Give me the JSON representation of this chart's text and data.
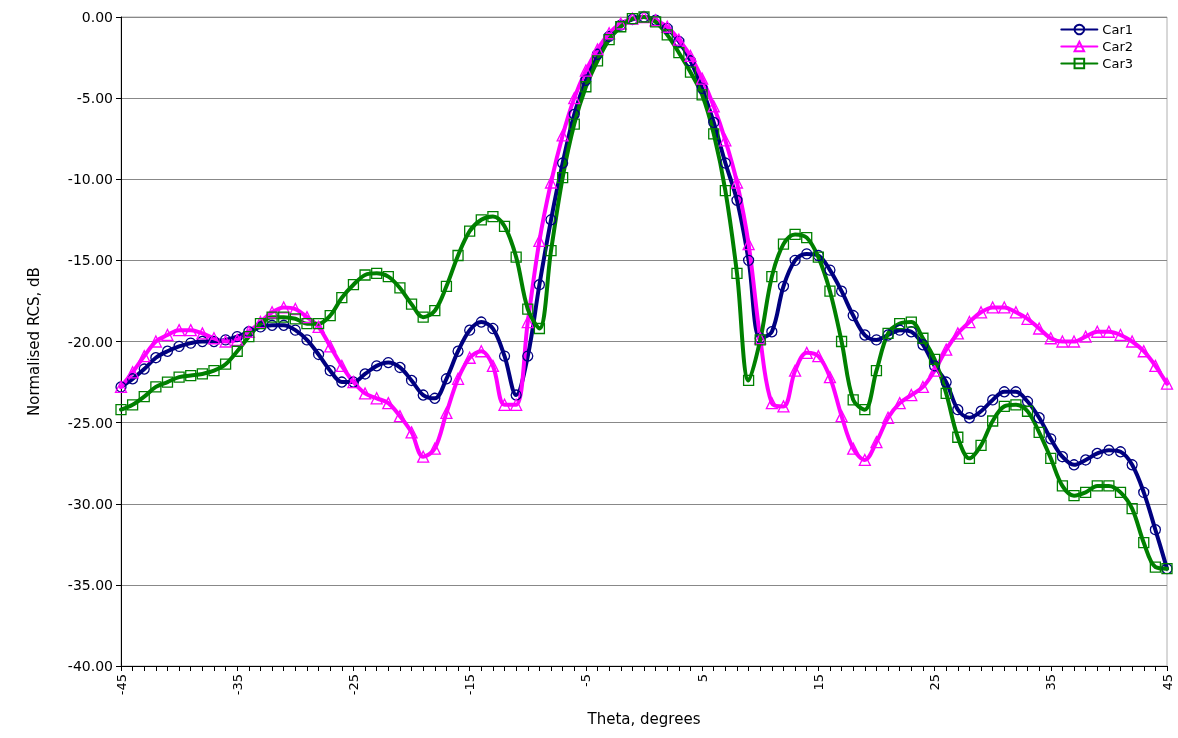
{
  "chart_data": {
    "type": "line",
    "xlabel": "Theta, degrees",
    "ylabel": "Normalised RCS, dB",
    "x": [
      -45,
      -44,
      -43,
      -42,
      -41,
      -40,
      -39,
      -38,
      -37,
      -36,
      -35,
      -34,
      -33,
      -32,
      -31,
      -30,
      -29,
      -28,
      -27,
      -26,
      -25,
      -24,
      -23,
      -22,
      -21,
      -20,
      -19,
      -18,
      -17,
      -16,
      -15,
      -14,
      -13,
      -12,
      -11,
      -10,
      -9,
      -8,
      -7,
      -6,
      -5,
      -4,
      -3,
      -2,
      -1,
      0,
      1,
      2,
      3,
      4,
      5,
      6,
      7,
      8,
      9,
      10,
      11,
      12,
      13,
      14,
      15,
      16,
      17,
      18,
      19,
      20,
      21,
      22,
      23,
      24,
      25,
      26,
      27,
      28,
      29,
      30,
      31,
      32,
      33,
      34,
      35,
      36,
      37,
      38,
      39,
      40,
      41,
      42,
      43,
      44,
      45
    ],
    "series": [
      {
        "name": "Car1",
        "color": "#000080",
        "marker": "circle",
        "values": [
          -22.8,
          -22.3,
          -21.7,
          -21.0,
          -20.6,
          -20.3,
          -20.1,
          -20.0,
          -20.0,
          -19.9,
          -19.7,
          -19.4,
          -19.1,
          -19.0,
          -19.0,
          -19.3,
          -19.9,
          -20.8,
          -21.8,
          -22.5,
          -22.5,
          -22.0,
          -21.5,
          -21.3,
          -21.6,
          -22.4,
          -23.3,
          -23.5,
          -22.3,
          -20.6,
          -19.3,
          -18.8,
          -19.2,
          -20.9,
          -23.3,
          -20.9,
          -16.5,
          -12.5,
          -9.0,
          -6.0,
          -3.9,
          -2.3,
          -1.2,
          -0.5,
          -0.15,
          0.0,
          -0.2,
          -0.7,
          -1.5,
          -2.7,
          -4.4,
          -6.5,
          -9.0,
          -11.3,
          -15.0,
          -19.8,
          -19.4,
          -16.6,
          -15.0,
          -14.6,
          -14.7,
          -15.6,
          -16.9,
          -18.4,
          -19.6,
          -19.9,
          -19.6,
          -19.3,
          -19.4,
          -20.2,
          -21.5,
          -22.5,
          -24.2,
          -24.7,
          -24.3,
          -23.6,
          -23.1,
          -23.1,
          -23.7,
          -24.7,
          -26.0,
          -27.1,
          -27.6,
          -27.3,
          -26.9,
          -26.7,
          -26.8,
          -27.6,
          -29.3,
          -31.6,
          -34.0
        ]
      },
      {
        "name": "Car2",
        "color": "#ff00ff",
        "marker": "triangle",
        "values": [
          -22.8,
          -21.9,
          -20.9,
          -20.0,
          -19.6,
          -19.3,
          -19.3,
          -19.5,
          -19.8,
          -20.0,
          -19.9,
          -19.4,
          -18.8,
          -18.2,
          -17.9,
          -18.0,
          -18.5,
          -19.1,
          -20.3,
          -21.5,
          -22.5,
          -23.2,
          -23.5,
          -23.8,
          -24.6,
          -25.6,
          -27.1,
          -26.6,
          -24.4,
          -22.3,
          -21.0,
          -20.6,
          -21.5,
          -23.9,
          -23.9,
          -18.8,
          -13.8,
          -10.2,
          -7.3,
          -5.0,
          -3.3,
          -2.0,
          -1.0,
          -0.4,
          -0.1,
          0.0,
          -0.2,
          -0.6,
          -1.4,
          -2.4,
          -3.8,
          -5.5,
          -7.6,
          -10.2,
          -14.0,
          -19.8,
          -23.8,
          -24.0,
          -21.8,
          -20.7,
          -20.9,
          -22.2,
          -24.6,
          -26.6,
          -27.3,
          -26.2,
          -24.7,
          -23.8,
          -23.3,
          -22.8,
          -21.8,
          -20.5,
          -19.5,
          -18.8,
          -18.2,
          -17.9,
          -17.9,
          -18.2,
          -18.6,
          -19.2,
          -19.8,
          -20.0,
          -20.0,
          -19.7,
          -19.4,
          -19.4,
          -19.6,
          -20.0,
          -20.6,
          -21.5,
          -22.6
        ]
      },
      {
        "name": "Car3",
        "color": "#008000",
        "marker": "square",
        "values": [
          -24.2,
          -23.9,
          -23.4,
          -22.8,
          -22.5,
          -22.2,
          -22.1,
          -22.0,
          -21.8,
          -21.4,
          -20.6,
          -19.7,
          -18.9,
          -18.5,
          -18.5,
          -18.6,
          -18.9,
          -18.9,
          -18.4,
          -17.3,
          -16.5,
          -15.9,
          -15.8,
          -16.0,
          -16.7,
          -17.7,
          -18.5,
          -18.1,
          -16.6,
          -14.7,
          -13.2,
          -12.5,
          -12.3,
          -12.9,
          -14.8,
          -18.0,
          -19.2,
          -14.4,
          -9.9,
          -6.6,
          -4.3,
          -2.7,
          -1.4,
          -0.6,
          -0.1,
          0.0,
          -0.3,
          -1.1,
          -2.2,
          -3.4,
          -4.8,
          -7.2,
          -10.7,
          -15.8,
          -22.4,
          -19.9,
          -16.0,
          -14.0,
          -13.4,
          -13.6,
          -14.8,
          -16.9,
          -20.0,
          -23.6,
          -24.2,
          -21.8,
          -19.5,
          -18.9,
          -18.8,
          -19.8,
          -21.1,
          -23.2,
          -25.9,
          -27.2,
          -26.4,
          -24.9,
          -24.0,
          -23.9,
          -24.3,
          -25.6,
          -27.2,
          -28.9,
          -29.5,
          -29.3,
          -28.9,
          -28.9,
          -29.3,
          -30.3,
          -32.4,
          -33.9,
          -34.0
        ]
      }
    ],
    "xlim": [
      -45,
      45
    ],
    "xticks": [
      {
        "value": -45,
        "label": "-45"
      },
      {
        "value": -44,
        "label": null
      },
      {
        "value": -43,
        "label": null
      },
      {
        "value": -42,
        "label": null
      },
      {
        "value": -41,
        "label": null
      },
      {
        "value": -40,
        "label": null
      },
      {
        "value": -39,
        "label": null
      },
      {
        "value": -38,
        "label": null
      },
      {
        "value": -37,
        "label": null
      },
      {
        "value": -36,
        "label": null
      },
      {
        "value": -35,
        "label": "-35"
      },
      {
        "value": -34,
        "label": null
      },
      {
        "value": -33,
        "label": null
      },
      {
        "value": -32,
        "label": null
      },
      {
        "value": -31,
        "label": null
      },
      {
        "value": -30,
        "label": null
      },
      {
        "value": -29,
        "label": null
      },
      {
        "value": -28,
        "label": null
      },
      {
        "value": -27,
        "label": null
      },
      {
        "value": -26,
        "label": null
      },
      {
        "value": -25,
        "label": "-25"
      },
      {
        "value": -24,
        "label": null
      },
      {
        "value": -23,
        "label": null
      },
      {
        "value": -22,
        "label": null
      },
      {
        "value": -21,
        "label": null
      },
      {
        "value": -20,
        "label": null
      },
      {
        "value": -19,
        "label": null
      },
      {
        "value": -18,
        "label": null
      },
      {
        "value": -17,
        "label": null
      },
      {
        "value": -16,
        "label": null
      },
      {
        "value": -15,
        "label": "-15"
      },
      {
        "value": -14,
        "label": null
      },
      {
        "value": -13,
        "label": null
      },
      {
        "value": -12,
        "label": null
      },
      {
        "value": -11,
        "label": null
      },
      {
        "value": -10,
        "label": null
      },
      {
        "value": -9,
        "label": null
      },
      {
        "value": -8,
        "label": null
      },
      {
        "value": -7,
        "label": null
      },
      {
        "value": -6,
        "label": null
      },
      {
        "value": -5,
        "label": "-5"
      },
      {
        "value": -4,
        "label": null
      },
      {
        "value": -3,
        "label": null
      },
      {
        "value": -2,
        "label": null
      },
      {
        "value": -1,
        "label": null
      },
      {
        "value": 0,
        "label": null
      },
      {
        "value": 1,
        "label": null
      },
      {
        "value": 2,
        "label": null
      },
      {
        "value": 3,
        "label": null
      },
      {
        "value": 4,
        "label": null
      },
      {
        "value": 5,
        "label": "5"
      },
      {
        "value": 6,
        "label": null
      },
      {
        "value": 7,
        "label": null
      },
      {
        "value": 8,
        "label": null
      },
      {
        "value": 9,
        "label": null
      },
      {
        "value": 10,
        "label": null
      },
      {
        "value": 11,
        "label": null
      },
      {
        "value": 12,
        "label": null
      },
      {
        "value": 13,
        "label": null
      },
      {
        "value": 14,
        "label": null
      },
      {
        "value": 15,
        "label": "15"
      },
      {
        "value": 16,
        "label": null
      },
      {
        "value": 17,
        "label": null
      },
      {
        "value": 18,
        "label": null
      },
      {
        "value": 19,
        "label": null
      },
      {
        "value": 20,
        "label": null
      },
      {
        "value": 21,
        "label": null
      },
      {
        "value": 22,
        "label": null
      },
      {
        "value": 23,
        "label": null
      },
      {
        "value": 24,
        "label": null
      },
      {
        "value": 25,
        "label": "25"
      },
      {
        "value": 26,
        "label": null
      },
      {
        "value": 27,
        "label": null
      },
      {
        "value": 28,
        "label": null
      },
      {
        "value": 29,
        "label": null
      },
      {
        "value": 30,
        "label": null
      },
      {
        "value": 31,
        "label": null
      },
      {
        "value": 32,
        "label": null
      },
      {
        "value": 33,
        "label": null
      },
      {
        "value": 34,
        "label": null
      },
      {
        "value": 35,
        "label": "35"
      },
      {
        "value": 36,
        "label": null
      },
      {
        "value": 37,
        "label": null
      },
      {
        "value": 38,
        "label": null
      },
      {
        "value": 39,
        "label": null
      },
      {
        "value": 40,
        "label": null
      },
      {
        "value": 41,
        "label": null
      },
      {
        "value": 42,
        "label": null
      },
      {
        "value": 43,
        "label": null
      },
      {
        "value": 44,
        "label": null
      },
      {
        "value": 45,
        "label": "45"
      }
    ],
    "ylim": [
      -40,
      0
    ],
    "yticks": [
      {
        "value": -40,
        "label": "-40.00"
      },
      {
        "value": -35,
        "label": "-35.00"
      },
      {
        "value": -30,
        "label": "-30.00"
      },
      {
        "value": -25,
        "label": "-25.00"
      },
      {
        "value": -20,
        "label": "-20.00"
      },
      {
        "value": -15,
        "label": "-15.00"
      },
      {
        "value": -10,
        "label": "-10.00"
      },
      {
        "value": -5,
        "label": "-5.00"
      },
      {
        "value": 0,
        "label": "0.00"
      }
    ],
    "grid": "y",
    "legend": "top right",
    "line_style": "solid"
  }
}
